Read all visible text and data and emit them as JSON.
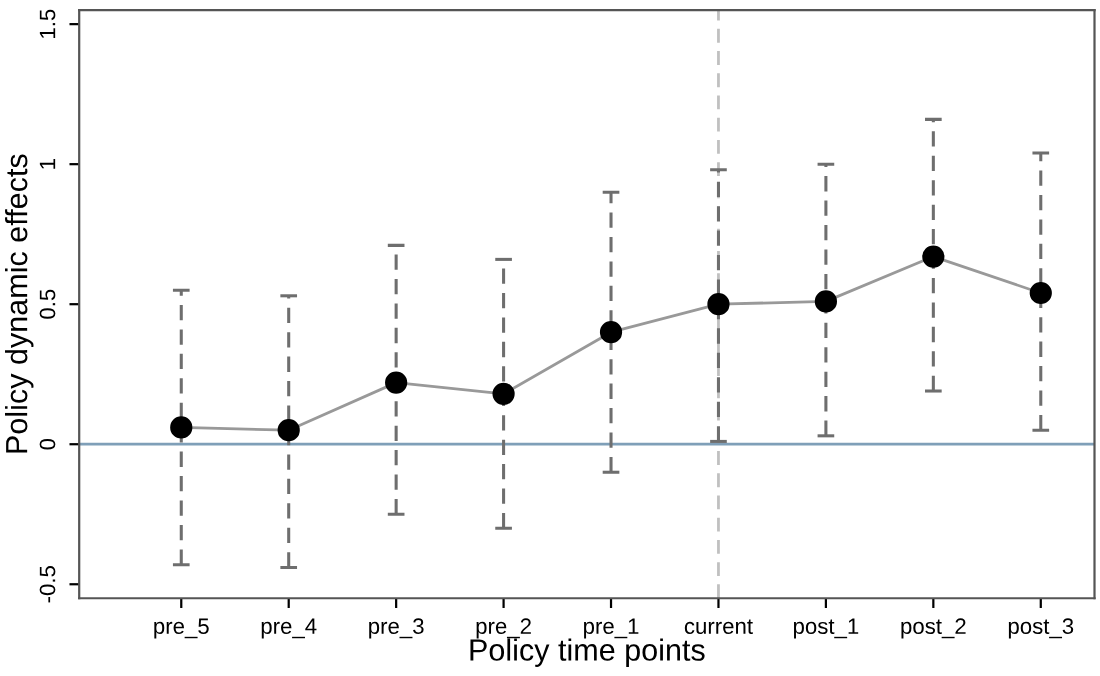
{
  "chart_data": {
    "type": "line",
    "xlabel": "Policy time points",
    "ylabel": "Policy dynamic effects",
    "categories": [
      "pre_5",
      "pre_4",
      "pre_3",
      "pre_2",
      "pre_1",
      "current",
      "post_1",
      "post_2",
      "post_3"
    ],
    "series": [
      {
        "color": "#999999",
        "colors": [
          "#000000",
          "#000000",
          "#000000",
          "#000000",
          "#000000",
          "#000000",
          "#000000",
          "#000000",
          "#000000"
        ],
        "values": [
          0.06,
          0.05,
          0.22,
          0.18,
          0.4,
          0.5,
          0.51,
          0.67,
          0.54
        ],
        "errors": [
          [
            -0.43,
            0.55
          ],
          [
            -0.44,
            0.53
          ],
          [
            -0.25,
            0.71
          ],
          [
            -0.3,
            0.66
          ],
          [
            -0.1,
            0.9
          ],
          [
            0.01,
            0.98
          ],
          [
            0.03,
            1.0
          ],
          [
            0.19,
            1.16
          ],
          [
            0.05,
            1.04
          ]
        ]
      }
    ],
    "marker": "circle",
    "ylim": [
      -0.55,
      1.55
    ],
    "yticks": [
      -0.5,
      0,
      0.5,
      1,
      1.5
    ],
    "grid": false,
    "ref_lines": [
      {
        "axis": "y",
        "value": 0,
        "color": "#7f9fb8",
        "line_style": "solid"
      },
      {
        "axis": "x",
        "value": "current",
        "color": "#c0c0c0",
        "line_style": "dashed"
      }
    ]
  }
}
